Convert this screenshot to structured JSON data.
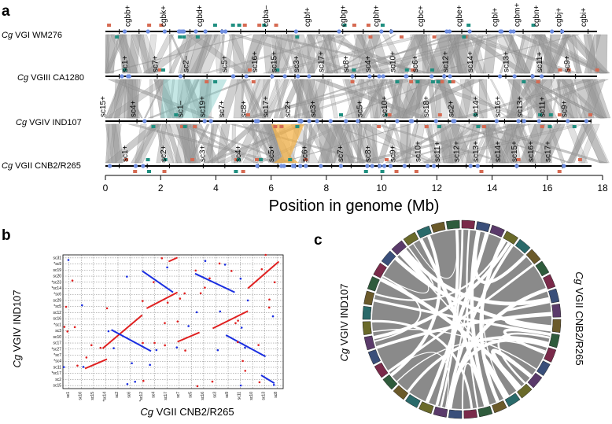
{
  "panel_labels": {
    "a": "a",
    "b": "b",
    "c": "c"
  },
  "panel_a": {
    "genomes": [
      {
        "prefix": "Cg",
        "name": "VGI WM276"
      },
      {
        "prefix": "Cg",
        "name": "VGIII CA1280"
      },
      {
        "prefix": "Cg",
        "name": "VGIV IND107"
      },
      {
        "prefix": "Cg",
        "name": "VGII CNB2/R265"
      }
    ],
    "top_labels": [
      "cgbb+",
      "cgbk+",
      "cgbd+",
      "cgba–",
      "cgbf+",
      "cgbg+",
      "cgbh+",
      "cgbc+",
      "cgbe+",
      "cgbl+",
      "cgbm+",
      "cgbn+",
      "cgbj+",
      "cgbi+"
    ],
    "top_label_mb": [
      0.9,
      2.2,
      3.5,
      5.9,
      7.4,
      8.7,
      9.9,
      11.5,
      12.9,
      14.2,
      15.0,
      15.7,
      16.5,
      17.4
    ],
    "vgiii_labels": [
      "sc1+",
      "sc7+",
      "sc2–",
      "sc5+",
      "sc16+",
      "sc15+",
      "sc3+",
      "sc17+",
      "sc8+",
      "sc4+",
      "sc10+",
      "sc6+",
      "sc12+",
      "sc14+",
      "sc13+",
      "sc11+",
      "sc9+"
    ],
    "vgiii_label_mb": [
      0.8,
      1.9,
      3.0,
      4.4,
      5.5,
      6.2,
      7.0,
      7.9,
      8.8,
      9.6,
      10.5,
      11.3,
      12.4,
      13.3,
      14.6,
      15.8,
      16.8
    ],
    "vgiv_labels": [
      "sc15+",
      "sc4+",
      "sc1–",
      "sc19+",
      "sc7+",
      "sc8+",
      "sc17+",
      "sc2+",
      "sc3+",
      "sc5+",
      "sc10+",
      "sc18+",
      "sc2+",
      "sc14+",
      "sc16+",
      "sc13+",
      "sc11+",
      "sc9+"
    ],
    "vgiv_label_mb": [
      0.0,
      1.1,
      2.8,
      3.6,
      4.3,
      5.1,
      5.9,
      6.7,
      7.6,
      9.3,
      10.2,
      11.7,
      12.6,
      13.5,
      14.3,
      15.1,
      15.9,
      16.7
    ],
    "vgii_labels": [
      "sc1+",
      "sc2+",
      "sc3+",
      "sc4+",
      "sc5+",
      "sc6+",
      "sc7+",
      "sc8+",
      "sc9+",
      "sc10+",
      "sc11+",
      "sc12+",
      "sc13+",
      "sc14+",
      "sc15+",
      "sc16+",
      "sc17+"
    ],
    "vgii_label_mb": [
      0.8,
      2.2,
      3.6,
      4.9,
      6.1,
      7.3,
      8.6,
      9.6,
      10.5,
      11.4,
      12.1,
      12.8,
      13.5,
      14.3,
      14.9,
      15.5,
      16.1
    ],
    "x_axis": {
      "label": "Position in genome (Mb)",
      "ticks": [
        "0",
        "2",
        "4",
        "6",
        "8",
        "10",
        "12",
        "14",
        "16",
        "18"
      ],
      "range": [
        0,
        18
      ]
    },
    "highlight_colors": {
      "teal": "#7fc9c6",
      "orange": "#f5b041",
      "red": "#d66a52",
      "green": "#1f8f80",
      "blue": "#6f8ee0",
      "link": "#9a9a9a"
    }
  },
  "panel_b": {
    "xlabel_prefix": "Cg",
    "xlabel": "VGII CNB2/R265",
    "ylabel_prefix": "Cg",
    "ylabel": "VGIV IND107",
    "y_ticks": [
      "sc31",
      "*sc9",
      "sc19",
      "sc20",
      "*sc23",
      "*sc14",
      "*sc6",
      "sc29",
      "*sc5",
      "sc12",
      "sc16",
      "*sc1",
      "sc3",
      "sc10",
      "sc17",
      "*sc27",
      "*sc7",
      "*sc4",
      "sc11",
      "*sc17",
      "sc2",
      "sc15"
    ],
    "x_ticks": [
      "sc1",
      "sc16",
      "sc15",
      "*sc14",
      "sc2",
      "sc6",
      "*sc12",
      "sc4",
      "sc17",
      "sc7",
      "sc5",
      "sc16",
      "sc3",
      "sc9",
      "sc11",
      "sc10",
      "sc13",
      "sc8"
    ],
    "colors": {
      "forward": "#e02020",
      "reverse": "#1a2ee0"
    }
  },
  "panel_c": {
    "left_label_prefix": "Cg",
    "left_label": "VGIV IND107",
    "right_label_prefix": "Cg",
    "right_label": "VGII CNB2/R265",
    "ribbon_color": "#8a8a8a"
  }
}
